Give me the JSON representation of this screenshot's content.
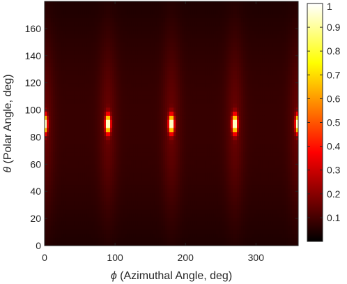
{
  "chart_data": {
    "type": "heatmap",
    "title": "",
    "xlabel_symbol": "ϕ",
    "xlabel": " (Azimuthal Angle, deg)",
    "ylabel_symbol": "θ",
    "ylabel": " (Polar Angle, deg)",
    "xlim": [
      0,
      360
    ],
    "ylim": [
      0,
      180
    ],
    "x_ticks": [
      0,
      100,
      200,
      300
    ],
    "y_ticks": [
      0,
      20,
      40,
      60,
      80,
      100,
      120,
      140,
      160
    ],
    "colorbar": {
      "colormap": "hot",
      "range": [
        0,
        1
      ],
      "ticks": [
        0.1,
        0.2,
        0.3,
        0.4,
        0.5,
        0.6,
        0.7,
        0.8,
        0.9,
        1
      ],
      "tick_labels": [
        "0.1",
        "0.2",
        "0.3",
        "0.4",
        "0.5",
        "0.6",
        "0.7",
        "0.8",
        "0.9",
        "1"
      ]
    },
    "background_level": 0.08,
    "peaks": [
      {
        "phi": 0,
        "theta": 90,
        "value": 1.0
      },
      {
        "phi": 90,
        "theta": 90,
        "value": 1.0
      },
      {
        "phi": 180,
        "theta": 90,
        "value": 1.0
      },
      {
        "phi": 270,
        "theta": 90,
        "value": 1.0
      },
      {
        "phi": 360,
        "theta": 90,
        "value": 1.0
      }
    ],
    "grid": false,
    "legend": "colorbar-right"
  }
}
